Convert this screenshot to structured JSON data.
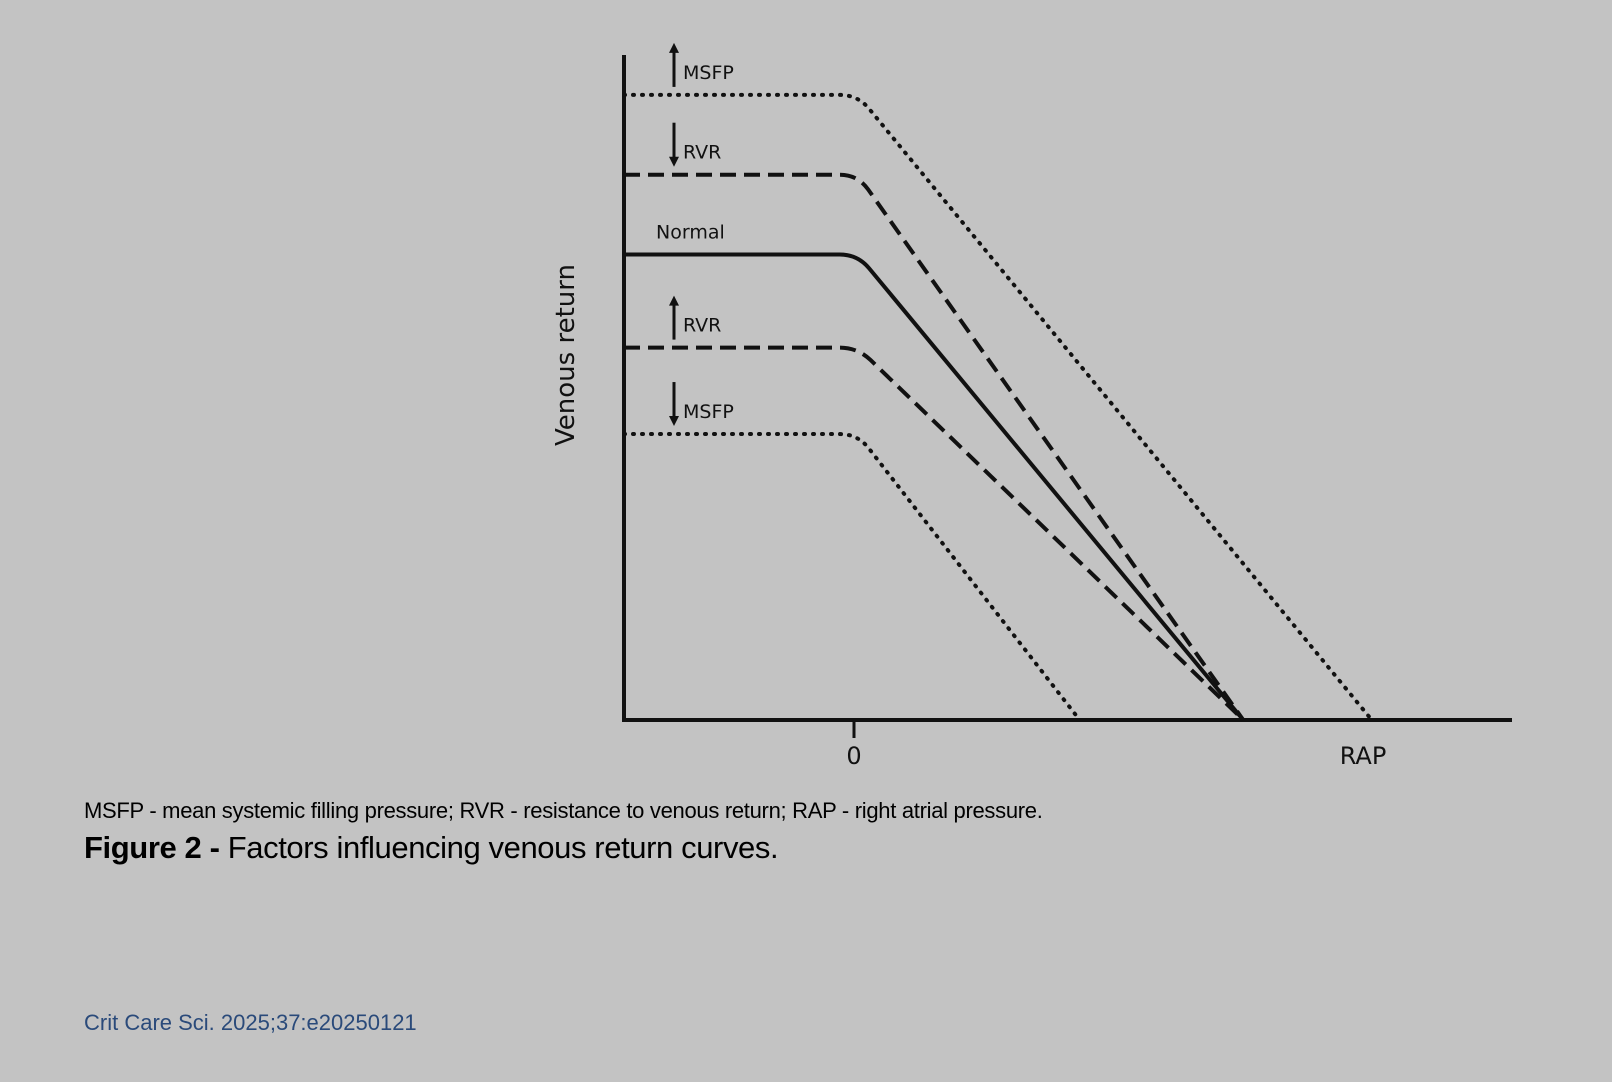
{
  "chart_data": {
    "type": "line",
    "ylabel": "Venous return",
    "xlabel": "RAP",
    "x_ticks": [
      "0"
    ],
    "xlim": [
      -10,
      28
    ],
    "ylim": [
      0,
      10
    ],
    "series": [
      {
        "name": "MSFP",
        "direction": "up",
        "style": "dotted",
        "x": [
          -10,
          0,
          22
        ],
        "y": [
          9.4,
          9.4,
          0
        ]
      },
      {
        "name": "RVR",
        "direction": "down",
        "style": "dashed",
        "x": [
          -10,
          0,
          16.5
        ],
        "y": [
          8.2,
          8.2,
          0
        ]
      },
      {
        "name": "Normal",
        "direction": "",
        "style": "solid",
        "x": [
          -10,
          0,
          16.5
        ],
        "y": [
          7.0,
          7.0,
          0
        ]
      },
      {
        "name": "RVR",
        "direction": "up",
        "style": "dashed",
        "x": [
          -10,
          0,
          16.5
        ],
        "y": [
          5.6,
          5.6,
          0
        ]
      },
      {
        "name": "MSFP",
        "direction": "down",
        "style": "dotted",
        "x": [
          -10,
          0,
          9.5
        ],
        "y": [
          4.3,
          4.3,
          0
        ]
      }
    ]
  },
  "footnote": "MSFP - mean systemic filling pressure; RVR - resistance to venous return; RAP - right atrial pressure.",
  "caption": {
    "label": "Figure 2 -",
    "text": " Factors influencing venous return curves."
  },
  "citation": "Crit Care Sci. 2025;37:e20250121"
}
